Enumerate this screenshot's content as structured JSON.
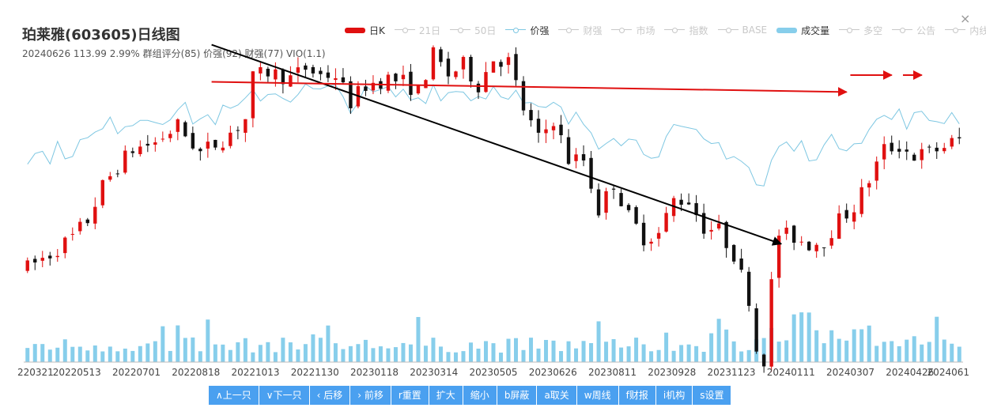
{
  "header": {
    "title": "珀莱雅(603605)日线图",
    "subtitle": "20240626 113.99 2.99% 群组评分(85) 价强(92) 财强(77) VIO(1.1)",
    "close_icon": "×"
  },
  "legend": [
    {
      "label": "日K",
      "state": "on",
      "color": "#e01010"
    },
    {
      "label": "21日",
      "state": "off"
    },
    {
      "label": "50日",
      "state": "off"
    },
    {
      "label": "价强",
      "state": "on-line",
      "color": "#7ec7e2"
    },
    {
      "label": "财强",
      "state": "off"
    },
    {
      "label": "市场",
      "state": "off"
    },
    {
      "label": "指数",
      "state": "off"
    },
    {
      "label": "BASE",
      "state": "off"
    },
    {
      "label": "成交量",
      "state": "on",
      "color": "#87ceeb"
    },
    {
      "label": "多空",
      "state": "off"
    },
    {
      "label": "公告",
      "state": "off"
    },
    {
      "label": "内线",
      "state": "off"
    }
  ],
  "toolbar": [
    {
      "label": "∧上一只"
    },
    {
      "label": "∨下一只"
    },
    {
      "label": "‹ 后移"
    },
    {
      "label": "› 前移"
    },
    {
      "label": "r重置"
    },
    {
      "label": "扩大"
    },
    {
      "label": "缩小"
    },
    {
      "label": "b屏蔽"
    },
    {
      "label": "a取关"
    },
    {
      "label": "w周线"
    },
    {
      "label": "f财报"
    },
    {
      "label": "i机构"
    },
    {
      "label": "s设置"
    }
  ],
  "chart_data": {
    "type": "candlestick",
    "x_ticks": [
      "220321",
      "20220513",
      "20220701",
      "20220818",
      "20221013",
      "20221130",
      "20230118",
      "20230314",
      "20230505",
      "20230626",
      "20230811",
      "20230928",
      "20231123",
      "20240111",
      "20240307",
      "20240426",
      "2024061"
    ],
    "price_anchors": [
      [
        0,
        128
      ],
      [
        3,
        132
      ],
      [
        6,
        137
      ],
      [
        8,
        142
      ],
      [
        10,
        152
      ],
      [
        12,
        158
      ],
      [
        14,
        163
      ],
      [
        17,
        165
      ],
      [
        20,
        170
      ],
      [
        23,
        162
      ],
      [
        26,
        166
      ],
      [
        29,
        172
      ],
      [
        30,
        184
      ],
      [
        32,
        186
      ],
      [
        35,
        184
      ],
      [
        37,
        187
      ],
      [
        39,
        185
      ],
      [
        41,
        185
      ],
      [
        43,
        177
      ],
      [
        45,
        182
      ],
      [
        48,
        184
      ],
      [
        50,
        183
      ],
      [
        52,
        180
      ],
      [
        54,
        191
      ],
      [
        56,
        185
      ],
      [
        58,
        188
      ],
      [
        60,
        182
      ],
      [
        62,
        190
      ],
      [
        64,
        189
      ],
      [
        66,
        175
      ],
      [
        68,
        166
      ],
      [
        70,
        172
      ],
      [
        72,
        160
      ],
      [
        74,
        160
      ],
      [
        76,
        145
      ],
      [
        78,
        153
      ],
      [
        80,
        143
      ],
      [
        82,
        137
      ],
      [
        84,
        138
      ],
      [
        86,
        148
      ],
      [
        88,
        148
      ],
      [
        90,
        140
      ],
      [
        92,
        139
      ],
      [
        94,
        132
      ],
      [
        96,
        119
      ],
      [
        97,
        104
      ],
      [
        98,
        101
      ],
      [
        99,
        123
      ],
      [
        100,
        138
      ],
      [
        102,
        137
      ],
      [
        104,
        135
      ],
      [
        106,
        136
      ],
      [
        108,
        142
      ],
      [
        110,
        146
      ],
      [
        112,
        154
      ],
      [
        114,
        163
      ],
      [
        116,
        164
      ],
      [
        118,
        161
      ],
      [
        120,
        162
      ],
      [
        122,
        164
      ],
      [
        124,
        166
      ]
    ],
    "price_ylim": [
      100,
      196
    ],
    "strength_ylim": [
      0,
      100
    ],
    "volume_ylim": [
      0,
      100
    ],
    "annotations": [
      {
        "type": "arrow",
        "color": "#000000",
        "from": {
          "x": 24.5,
          "y": 194
        },
        "to": {
          "x": 100.3,
          "y": 135
        }
      },
      {
        "type": "arrow",
        "color": "#e01010",
        "from": {
          "x": 24.5,
          "y": 183
        },
        "to": {
          "x": 109,
          "y": 180
        }
      },
      {
        "type": "arrow",
        "color": "#e01010",
        "from": {
          "x": 109.5,
          "y": 185
        },
        "to": {
          "x": 115,
          "y": 185
        }
      },
      {
        "type": "arrow",
        "color": "#e01010",
        "from": {
          "x": 116.5,
          "y": 185
        },
        "to": {
          "x": 119,
          "y": 185
        }
      }
    ]
  }
}
